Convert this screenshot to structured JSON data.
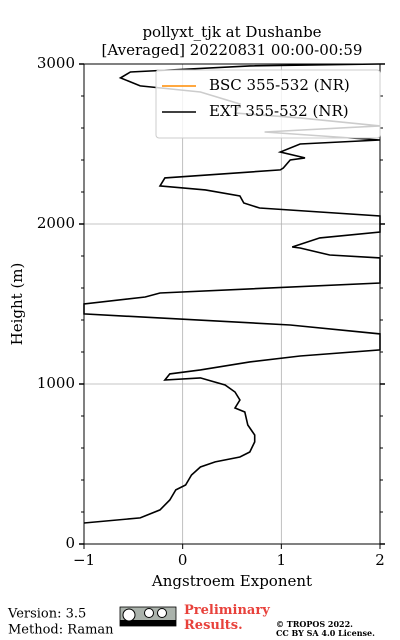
{
  "chart_data": {
    "type": "line",
    "title": "pollyxt_tjk at Dushanbe",
    "subtitle": "[Averaged] 20220831 00:00-00:59",
    "x_label": "Angstroem Exponent",
    "y_label": "Height (m)",
    "xlim": [
      -1,
      2
    ],
    "xticks": [
      {
        "value": -1,
        "label": "−1"
      },
      0,
      1,
      2
    ],
    "ylim": [
      0,
      3000
    ],
    "yticks": [
      0,
      1000,
      2000,
      3000
    ],
    "yminorticks": [
      200,
      400,
      600,
      800,
      1200,
      1400,
      1600,
      1800,
      2200,
      2400,
      2600,
      2800
    ],
    "grid": true,
    "legend": "upper right",
    "y": [
      131,
      163,
      213,
      275,
      338,
      369,
      431,
      481,
      513,
      544,
      575,
      638,
      681,
      744,
      825,
      850,
      900,
      950,
      994,
      1038,
      1025,
      1063,
      1088,
      1138,
      1175,
      1213,
      1313,
      1369,
      1438,
      1500,
      1544,
      1569,
      1631,
      1788,
      1806,
      1850,
      1856,
      1913,
      1950,
      2050,
      2100,
      2131,
      2175,
      2213,
      2238,
      2288,
      2338,
      2350,
      2400,
      2413,
      2450,
      2500,
      2525,
      2575,
      2613,
      2663,
      2694,
      2750,
      2825,
      2863,
      2913,
      2950,
      2988,
      3000
    ],
    "series": [
      {
        "name": "BSC 355-532 (NR)",
        "color": "#ff8c00",
        "values": [
          null,
          null,
          null,
          null,
          null,
          null,
          null,
          null,
          null,
          null,
          null,
          null,
          null,
          null,
          null,
          null,
          null,
          null,
          null,
          null,
          null,
          null,
          null,
          null,
          null,
          null,
          null,
          null,
          null,
          null,
          null,
          null,
          null,
          null,
          null,
          null,
          null,
          null,
          null,
          null,
          null,
          null,
          null,
          null,
          null,
          null,
          null,
          null,
          null,
          null,
          null,
          null,
          null,
          null,
          null,
          null,
          null,
          null,
          null,
          null,
          null,
          null,
          null,
          null
        ]
      },
      {
        "name": "EXT 355-532 (NR)",
        "color": "#000000",
        "values": [
          -1.0,
          -0.43,
          -0.23,
          -0.13,
          -0.07,
          0.03,
          0.09,
          0.18,
          0.33,
          0.58,
          0.68,
          0.73,
          0.73,
          0.66,
          0.63,
          0.53,
          0.58,
          0.53,
          0.43,
          0.18,
          -0.18,
          -0.13,
          0.18,
          0.68,
          1.19,
          2.0,
          2.0,
          1.09,
          -1.0,
          -1.0,
          -0.38,
          -0.23,
          2.0,
          2.0,
          1.49,
          1.19,
          1.11,
          1.39,
          2.0,
          2.0,
          0.78,
          0.62,
          0.58,
          0.23,
          -0.23,
          -0.18,
          0.99,
          1.02,
          1.09,
          1.24,
          0.99,
          1.19,
          2.0,
          0.83,
          2.0,
          1.19,
          0.53,
          0.58,
          0.18,
          -0.43,
          -0.63,
          -0.53,
          0.68,
          2.0
        ]
      }
    ]
  },
  "footer": {
    "version": "Version: 3.5",
    "method": "Method: Raman",
    "status": "Preliminary Results.",
    "copyright": "© TROPOS 2022.",
    "license": "CC BY SA 4.0 License."
  }
}
